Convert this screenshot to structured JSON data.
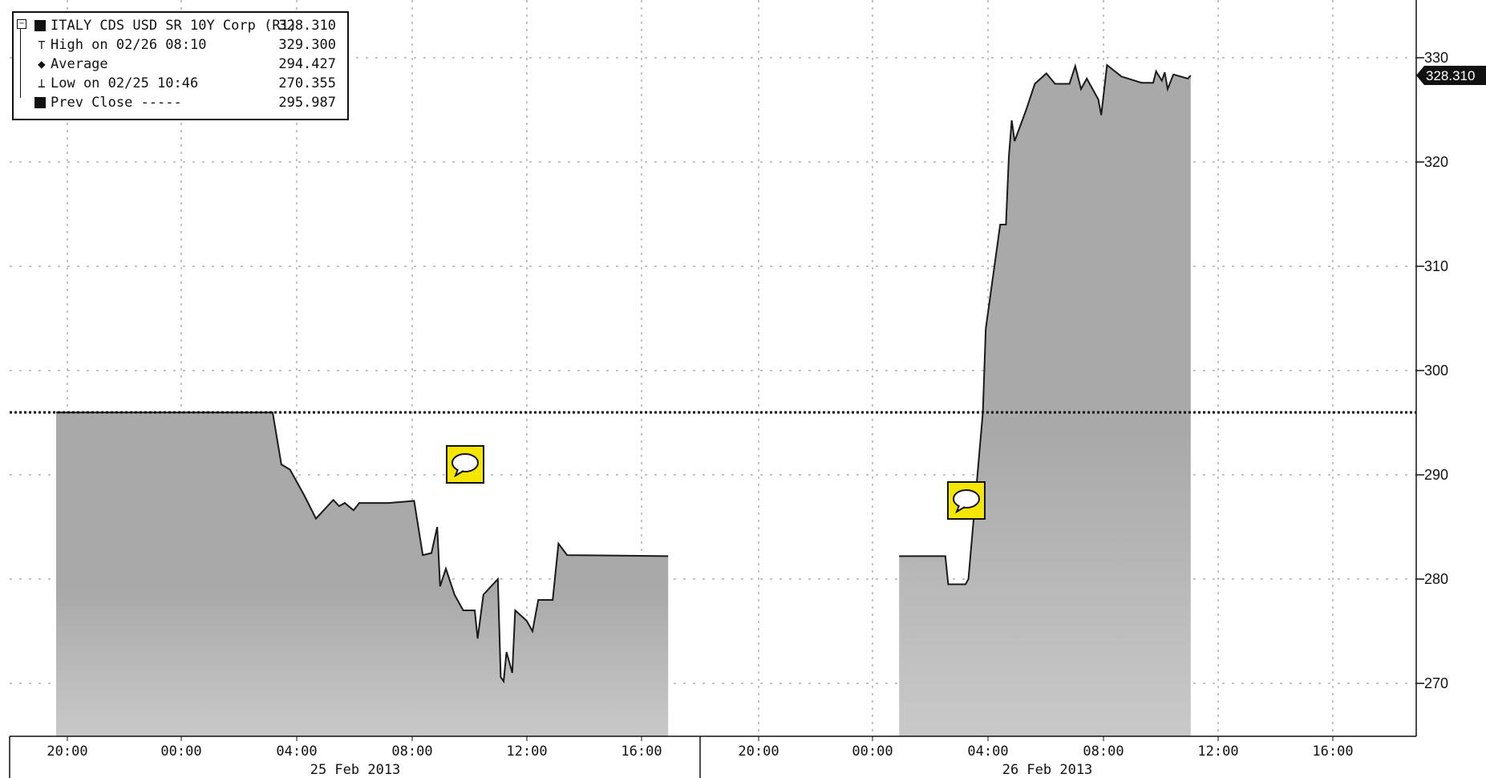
{
  "legend": {
    "rows": [
      {
        "label": "ITALY CDS USD SR 10Y Corp (R1)",
        "value": "328.310"
      },
      {
        "label": "High on 02/26 08:10",
        "value": "329.300"
      },
      {
        "label": "Average",
        "value": "294.427"
      },
      {
        "label": "Low on 02/25 10:46",
        "value": "270.355"
      },
      {
        "label": "Prev Close -----",
        "value": "295.987"
      }
    ]
  },
  "colors": {
    "area_dark": "#a9a9a9",
    "area_light": "#c9c9c9",
    "line": "#1a1a1a",
    "grid": "#888888",
    "note_fill": "#f5e600",
    "last_tag_bg": "#111111"
  },
  "chart_data": {
    "type": "area",
    "title": "ITALY CDS USD SR 10Y Corp (R1)",
    "last_price_label": "328.310",
    "prev_close": 295.987,
    "y_axis": {
      "side": "right",
      "range": [
        265,
        332
      ],
      "ticks": [
        "270",
        "280",
        "290",
        "300",
        "310",
        "320",
        "330"
      ]
    },
    "x_axis": {
      "tick_labels_day1": [
        "20:00",
        "00:00",
        "04:00",
        "08:00",
        "12:00",
        "16:00"
      ],
      "tick_labels_day2": [
        "20:00",
        "00:00",
        "04:00",
        "08:00",
        "12:00",
        "16:00"
      ],
      "date_labels": [
        "25 Feb 2013",
        "26 Feb 2013"
      ]
    },
    "grid": true,
    "annotations": [
      "note-icon",
      "note-icon"
    ],
    "series": [
      {
        "segment": "session-1",
        "points": [
          [
            0.0,
            295.987
          ],
          [
            7.5,
            295.987
          ],
          [
            7.8,
            291.0
          ],
          [
            8.1,
            290.5
          ],
          [
            8.6,
            288.0
          ],
          [
            9.0,
            285.8
          ],
          [
            9.4,
            287.0
          ],
          [
            9.6,
            287.6
          ],
          [
            9.8,
            287.0
          ],
          [
            10.0,
            287.3
          ],
          [
            10.3,
            286.6
          ],
          [
            10.5,
            287.3
          ],
          [
            11.5,
            287.3
          ],
          [
            12.4,
            287.5
          ],
          [
            12.7,
            282.3
          ],
          [
            13.0,
            282.5
          ],
          [
            13.2,
            285.0
          ],
          [
            13.3,
            279.3
          ],
          [
            13.5,
            281.0
          ],
          [
            13.8,
            278.5
          ],
          [
            14.1,
            277.0
          ],
          [
            14.5,
            277.0
          ],
          [
            14.6,
            274.3
          ],
          [
            14.8,
            278.5
          ],
          [
            15.3,
            280.0
          ],
          [
            15.4,
            270.6
          ],
          [
            15.5,
            270.2
          ],
          [
            15.6,
            273.0
          ],
          [
            15.8,
            271.0
          ],
          [
            15.9,
            277.0
          ],
          [
            16.3,
            276.0
          ],
          [
            16.5,
            275.0
          ],
          [
            16.7,
            278.0
          ],
          [
            17.2,
            278.0
          ],
          [
            17.4,
            283.4
          ],
          [
            17.7,
            282.3
          ],
          [
            21.2,
            282.2
          ]
        ]
      },
      {
        "segment": "session-2",
        "points": [
          [
            29.2,
            282.2
          ],
          [
            30.8,
            282.2
          ],
          [
            30.9,
            279.5
          ],
          [
            31.5,
            279.5
          ],
          [
            31.6,
            280.0
          ],
          [
            32.1,
            296.0
          ],
          [
            32.2,
            304.0
          ],
          [
            32.5,
            310.0
          ],
          [
            32.7,
            314.0
          ],
          [
            32.9,
            314.0
          ],
          [
            33.0,
            320.5
          ],
          [
            33.1,
            324.0
          ],
          [
            33.2,
            322.0
          ],
          [
            33.4,
            323.5
          ],
          [
            33.6,
            325.0
          ],
          [
            33.9,
            327.5
          ],
          [
            34.3,
            328.5
          ],
          [
            34.6,
            327.5
          ],
          [
            35.1,
            327.5
          ],
          [
            35.3,
            329.2
          ],
          [
            35.5,
            327.0
          ],
          [
            35.7,
            328.0
          ],
          [
            36.1,
            326.0
          ],
          [
            36.2,
            324.5
          ],
          [
            36.4,
            329.3
          ],
          [
            36.9,
            328.2
          ],
          [
            37.6,
            327.6
          ],
          [
            38.0,
            327.6
          ],
          [
            38.1,
            328.7
          ],
          [
            38.3,
            327.8
          ],
          [
            38.4,
            328.6
          ],
          [
            38.5,
            327.0
          ],
          [
            38.7,
            328.4
          ],
          [
            39.2,
            328.0
          ],
          [
            39.3,
            328.31
          ]
        ]
      }
    ]
  }
}
